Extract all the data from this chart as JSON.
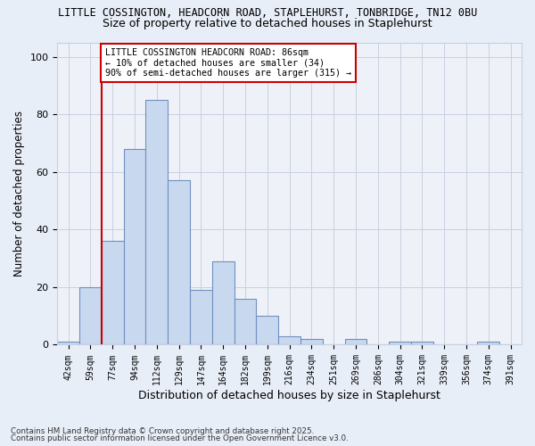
{
  "title_line1": "LITTLE COSSINGTON, HEADCORN ROAD, STAPLEHURST, TONBRIDGE, TN12 0BU",
  "title_line2": "Size of property relative to detached houses in Staplehurst",
  "xlabel": "Distribution of detached houses by size in Staplehurst",
  "ylabel": "Number of detached properties",
  "categories": [
    "42sqm",
    "59sqm",
    "77sqm",
    "94sqm",
    "112sqm",
    "129sqm",
    "147sqm",
    "164sqm",
    "182sqm",
    "199sqm",
    "216sqm",
    "234sqm",
    "251sqm",
    "269sqm",
    "286sqm",
    "304sqm",
    "321sqm",
    "339sqm",
    "356sqm",
    "374sqm",
    "391sqm"
  ],
  "values": [
    1,
    20,
    36,
    68,
    85,
    57,
    19,
    29,
    16,
    10,
    3,
    2,
    0,
    2,
    0,
    1,
    1,
    0,
    0,
    1,
    0
  ],
  "bar_color": "#c8d8ef",
  "bar_edge_color": "#7090c0",
  "vline_color": "#cc0000",
  "vline_index": 2,
  "annotation_text": "LITTLE COSSINGTON HEADCORN ROAD: 86sqm\n← 10% of detached houses are smaller (34)\n90% of semi-detached houses are larger (315) →",
  "annotation_box_color": "#ffffff",
  "annotation_box_edge": "#cc0000",
  "ylim": [
    0,
    105
  ],
  "yticks": [
    0,
    20,
    40,
    60,
    80,
    100
  ],
  "footer_line1": "Contains HM Land Registry data © Crown copyright and database right 2025.",
  "footer_line2": "Contains public sector information licensed under the Open Government Licence v3.0.",
  "background_color": "#e8eef8",
  "plot_background": "#eef2f8",
  "grid_color": "#c8d0e0"
}
